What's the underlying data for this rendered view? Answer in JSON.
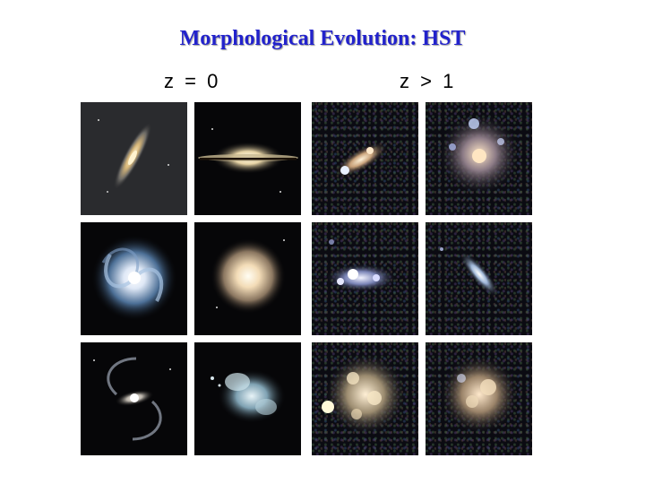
{
  "title": "Morphological Evolution: HST",
  "labels": {
    "left": "z = 0",
    "right": "z > 1"
  }
}
